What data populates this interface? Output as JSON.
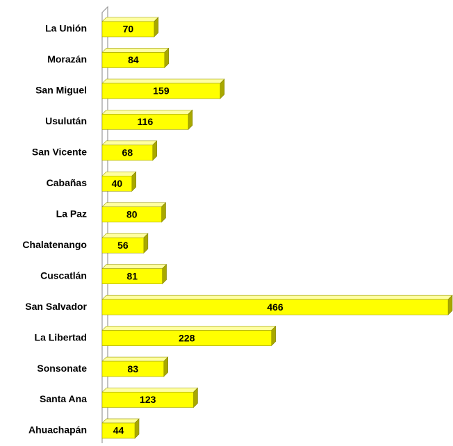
{
  "chart_data": {
    "type": "bar",
    "orientation": "horizontal",
    "categories": [
      "La Unión",
      "Morazán",
      "San Miguel",
      "Usulután",
      "San Vicente",
      "Cabañas",
      "La Paz",
      "Chalatenango",
      "Cuscatlán",
      "San Salvador",
      "La Libertad",
      "Sonsonate",
      "Santa Ana",
      "Ahuachapán"
    ],
    "values": [
      70,
      84,
      159,
      116,
      68,
      40,
      80,
      56,
      81,
      466,
      228,
      83,
      123,
      44
    ],
    "color": "#ffff00"
  }
}
